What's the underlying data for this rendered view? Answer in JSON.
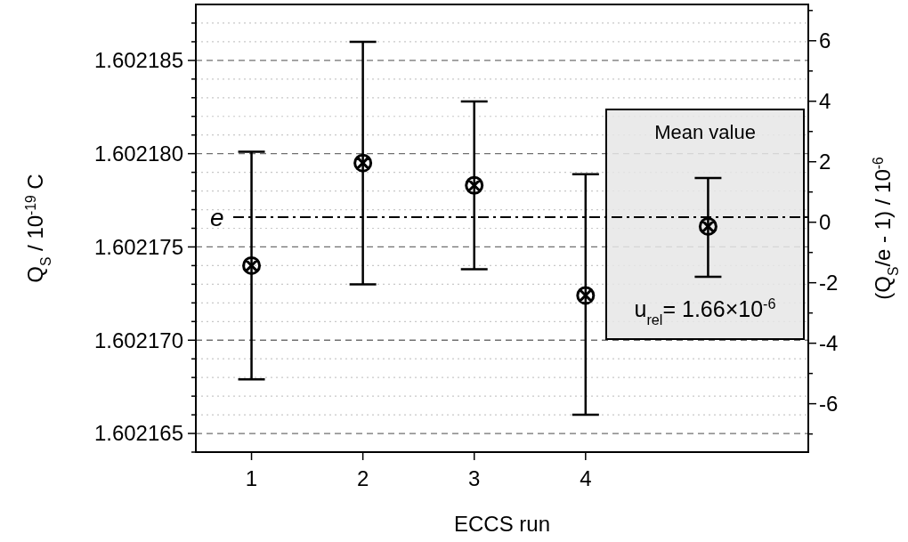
{
  "chart_data": {
    "type": "scatter",
    "xlabel": "ECCS run",
    "ylabel": "Q$_{S}$ / 10$^{-19}$ C",
    "y2label": "(Q$_{S}$/e - 1) / 10$^{-6}$",
    "x": [
      1,
      2,
      3,
      4,
      5.1
    ],
    "series": [
      {
        "color": "#000000",
        "values": [
          1.602174,
          1.6021795,
          1.6021783,
          1.6021724,
          1.6021761
        ],
        "errors": [
          [
            1.6021679,
            1.6021801
          ],
          [
            1.602173,
            1.602186
          ],
          [
            1.6021738,
            1.6021828
          ],
          [
            1.602166,
            1.6021789
          ],
          [
            1.6021734,
            1.6021787
          ]
        ]
      }
    ],
    "xlim": [
      0.5,
      6
    ],
    "xticks": [
      1,
      2,
      3,
      4
    ],
    "ylim": [
      1.602164,
      1.602188
    ],
    "yticks": [
      {
        "value": 1.602164,
        "label": null
      },
      1.602165,
      {
        "value": 1.602166,
        "label": null
      },
      {
        "value": 1.602167,
        "label": null
      },
      {
        "value": 1.602168,
        "label": null
      },
      {
        "value": 1.602169,
        "label": null
      },
      {
        "value": 1.60217,
        "label": "1.602170"
      },
      {
        "value": 1.602171,
        "label": null
      },
      {
        "value": 1.602172,
        "label": null
      },
      {
        "value": 1.602173,
        "label": null
      },
      {
        "value": 1.602174,
        "label": null
      },
      1.602175,
      {
        "value": 1.602176,
        "label": null
      },
      {
        "value": 1.602177,
        "label": null
      },
      {
        "value": 1.602178,
        "label": null
      },
      {
        "value": 1.602179,
        "label": null
      },
      {
        "value": 1.60218,
        "label": "1.602180"
      },
      {
        "value": 1.602181,
        "label": null
      },
      {
        "value": 1.602182,
        "label": null
      },
      {
        "value": 1.602183,
        "label": null
      },
      {
        "value": 1.602184,
        "label": null
      },
      1.602185,
      {
        "value": 1.602186,
        "label": null
      },
      {
        "value": 1.602187,
        "label": null
      }
    ],
    "y2lim": [
      -7.6,
      7.2
    ],
    "y2ticks": [
      {
        "value": -7,
        "label": null
      },
      -6,
      {
        "value": -5,
        "label": null
      },
      -4,
      {
        "value": -3,
        "label": null
      },
      -2,
      {
        "value": -1,
        "label": null
      },
      0,
      {
        "value": 1,
        "label": null
      },
      2,
      {
        "value": 3,
        "label": null
      },
      4,
      {
        "value": 5,
        "label": null
      },
      6,
      {
        "value": 7,
        "label": null
      }
    ],
    "ref_lines": [
      {
        "axis": "y",
        "value": 1.6021766,
        "label": "e",
        "color": "#000000",
        "line_style": "dashed"
      }
    ],
    "annotations": [
      "Mean value",
      "u$_{rel}$= 1.66×10$^{-6}$"
    ],
    "grid": "y",
    "marker": "cross"
  }
}
